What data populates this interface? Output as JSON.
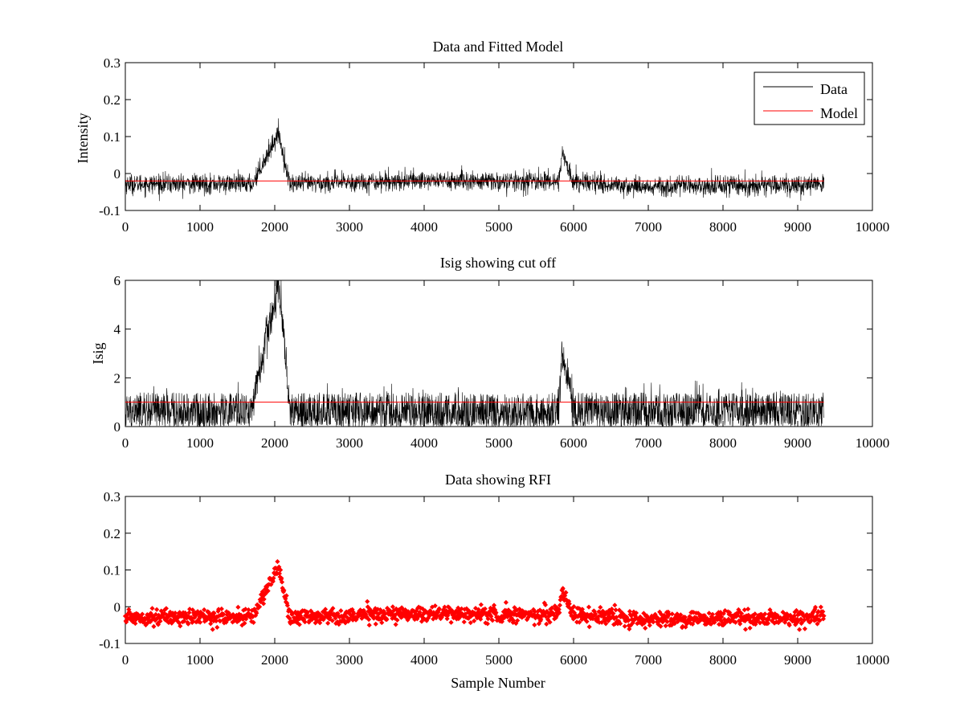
{
  "chart_data": [
    {
      "type": "line",
      "title": "Data and Fitted Model",
      "xlabel": "",
      "ylabel": "Intensity",
      "xlim": [
        0,
        10000
      ],
      "ylim": [
        -0.1,
        0.3
      ],
      "x_ticks": [
        0,
        1000,
        2000,
        3000,
        4000,
        5000,
        6000,
        7000,
        8000,
        9000,
        10000
      ],
      "x_tick_labels": [
        "0",
        "1000",
        "2000",
        "3000",
        "4000",
        "5000",
        "6000",
        "7000",
        "8000",
        "9000",
        "10000"
      ],
      "y_ticks": [
        -0.1,
        0,
        0.1,
        0.2,
        0.3
      ],
      "y_tick_labels": [
        "-0.1",
        "0",
        "0.1",
        "0.2",
        "0.3"
      ],
      "grid": false,
      "legend": "top-right",
      "series": [
        {
          "name": "Data",
          "color": "#000000",
          "style": "noisy-line",
          "x_range": [
            0,
            9350
          ],
          "baseline": [
            [
              0,
              -0.028
            ],
            [
              1700,
              -0.028
            ],
            [
              2200,
              -0.028
            ],
            [
              4000,
              -0.018
            ],
            [
              5000,
              -0.022
            ],
            [
              5800,
              -0.02
            ],
            [
              6000,
              -0.02
            ],
            [
              6800,
              -0.035
            ],
            [
              9350,
              -0.03
            ]
          ],
          "peaks": [
            {
              "start": 1700,
              "peak_x": 2050,
              "end": 2200,
              "peak_y": 0.11
            },
            {
              "start": 5800,
              "peak_x": 5850,
              "end": 5980,
              "peak_y": 0.055
            }
          ],
          "noise": 0.035
        },
        {
          "name": "Model",
          "color": "#ff0000",
          "style": "line",
          "x": [
            0,
            9350
          ],
          "y": [
            -0.02,
            -0.02
          ]
        }
      ]
    },
    {
      "type": "line",
      "title": "Isig showing cut off",
      "xlabel": "",
      "ylabel": "Isig",
      "xlim": [
        0,
        10000
      ],
      "ylim": [
        0,
        6
      ],
      "x_ticks": [
        0,
        1000,
        2000,
        3000,
        4000,
        5000,
        6000,
        7000,
        8000,
        9000,
        10000
      ],
      "x_tick_labels": [
        "0",
        "1000",
        "2000",
        "3000",
        "4000",
        "5000",
        "6000",
        "7000",
        "8000",
        "9000",
        "10000"
      ],
      "y_ticks": [
        0,
        2,
        4,
        6
      ],
      "y_tick_labels": [
        "0",
        "2",
        "4",
        "6"
      ],
      "grid": false,
      "series": [
        {
          "color": "#000000",
          "style": "spiky-positive",
          "x_range": [
            0,
            9350
          ],
          "noise_max": 1.4,
          "peaks": [
            {
              "start": 1700,
              "peak_x": 2050,
              "end": 2200,
              "peak_y": 5.8
            },
            {
              "start": 5800,
              "peak_x": 5850,
              "end": 5980,
              "peak_y": 3.2
            }
          ]
        },
        {
          "color": "#ff0000",
          "style": "line",
          "x": [
            0,
            9350
          ],
          "y": [
            1.0,
            1.0
          ]
        }
      ]
    },
    {
      "type": "scatter",
      "title": "Data showing RFI",
      "xlabel": "Sample Number",
      "ylabel": "",
      "xlim": [
        0,
        10000
      ],
      "ylim": [
        -0.1,
        0.3
      ],
      "x_ticks": [
        0,
        1000,
        2000,
        3000,
        4000,
        5000,
        6000,
        7000,
        8000,
        9000,
        10000
      ],
      "x_tick_labels": [
        "0",
        "1000",
        "2000",
        "3000",
        "4000",
        "5000",
        "6000",
        "7000",
        "8000",
        "9000",
        "10000"
      ],
      "y_ticks": [
        -0.1,
        0,
        0.1,
        0.2,
        0.3
      ],
      "y_tick_labels": [
        "-0.1",
        "0",
        "0.1",
        "0.2",
        "0.3"
      ],
      "grid": false,
      "series": [
        {
          "color": "#ff0000",
          "style": "dense-markers",
          "x_range": [
            0,
            9350
          ],
          "baseline": [
            [
              0,
              -0.028
            ],
            [
              1700,
              -0.028
            ],
            [
              2200,
              -0.028
            ],
            [
              4000,
              -0.018
            ],
            [
              5000,
              -0.022
            ],
            [
              5800,
              -0.02
            ],
            [
              6000,
              -0.02
            ],
            [
              6800,
              -0.035
            ],
            [
              9350,
              -0.03
            ]
          ],
          "peaks": [
            {
              "start": 1700,
              "peak_x": 2050,
              "end": 2200,
              "peak_y": 0.11
            },
            {
              "start": 5800,
              "peak_x": 5850,
              "end": 5980,
              "peak_y": 0.055
            }
          ],
          "noise": 0.03
        }
      ]
    }
  ]
}
